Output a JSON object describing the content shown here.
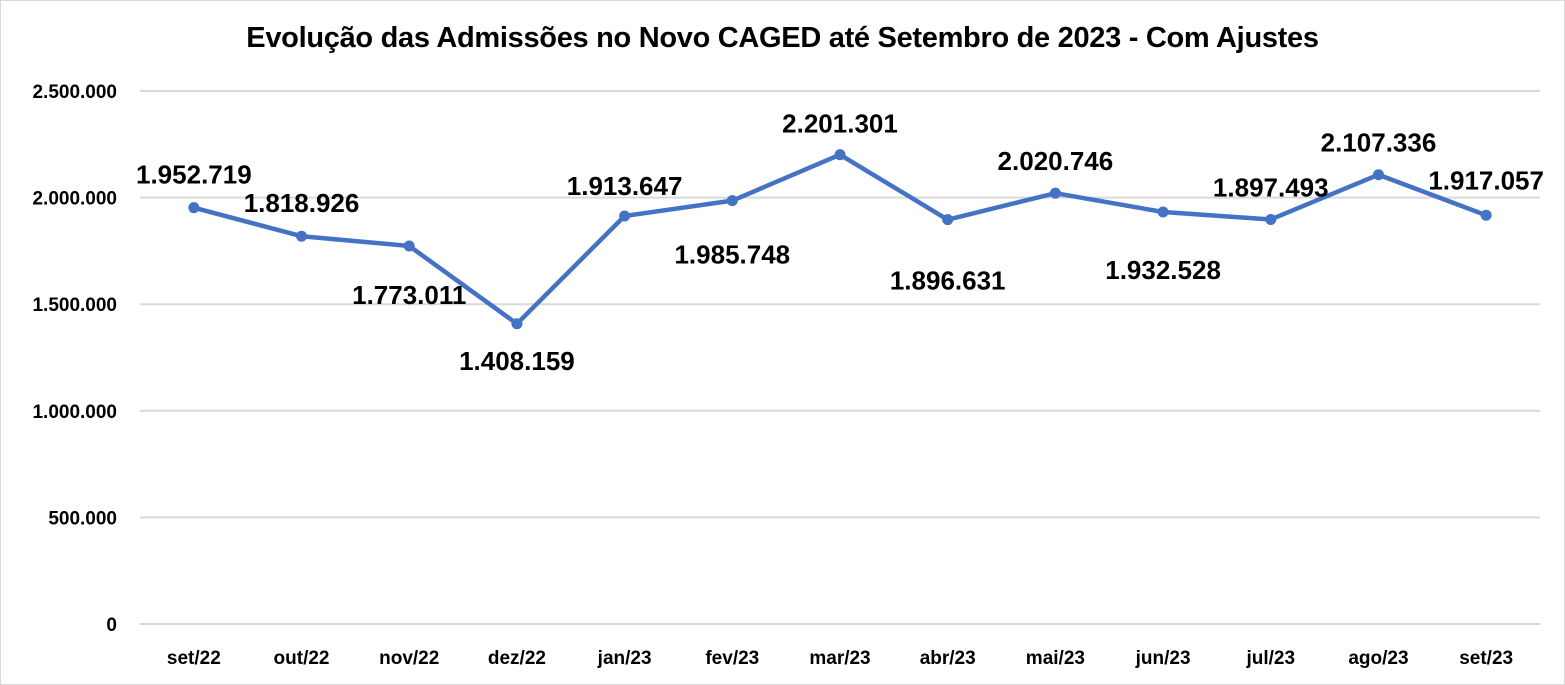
{
  "chart_data": {
    "type": "line",
    "title": "Evolução das Admissões no Novo CAGED até Setembro de 2023 - Com Ajustes",
    "xlabel": "",
    "ylabel": "",
    "categories": [
      "set/22",
      "out/22",
      "nov/22",
      "dez/22",
      "jan/23",
      "fev/23",
      "mar/23",
      "abr/23",
      "mai/23",
      "jun/23",
      "jul/23",
      "ago/23",
      "set/23"
    ],
    "series": [
      {
        "name": "Admissões",
        "color": "#4472C4",
        "values": [
          1952719,
          1818926,
          1773011,
          1408159,
          1913647,
          1985748,
          2201301,
          1896631,
          2020746,
          1932528,
          1897493,
          2107336,
          1917057
        ],
        "labels": [
          "1.952.719",
          "1.818.926",
          "1.773.011",
          "1.408.159",
          "1.913.647",
          "1.985.748",
          "2.201.301",
          "1.896.631",
          "2.020.746",
          "1.932.528",
          "1.897.493",
          "2.107.336",
          "1.917.057"
        ]
      }
    ],
    "ylim": [
      0,
      2500000
    ],
    "yticks": [
      0,
      500000,
      1000000,
      1500000,
      2000000,
      2500000
    ],
    "ytick_labels": [
      "0",
      "500.000",
      "1.000.000",
      "1.500.000",
      "2.000.000",
      "2.500.000"
    ],
    "grid": true,
    "legend": "none",
    "gridline_color": "#d9d9d9"
  }
}
